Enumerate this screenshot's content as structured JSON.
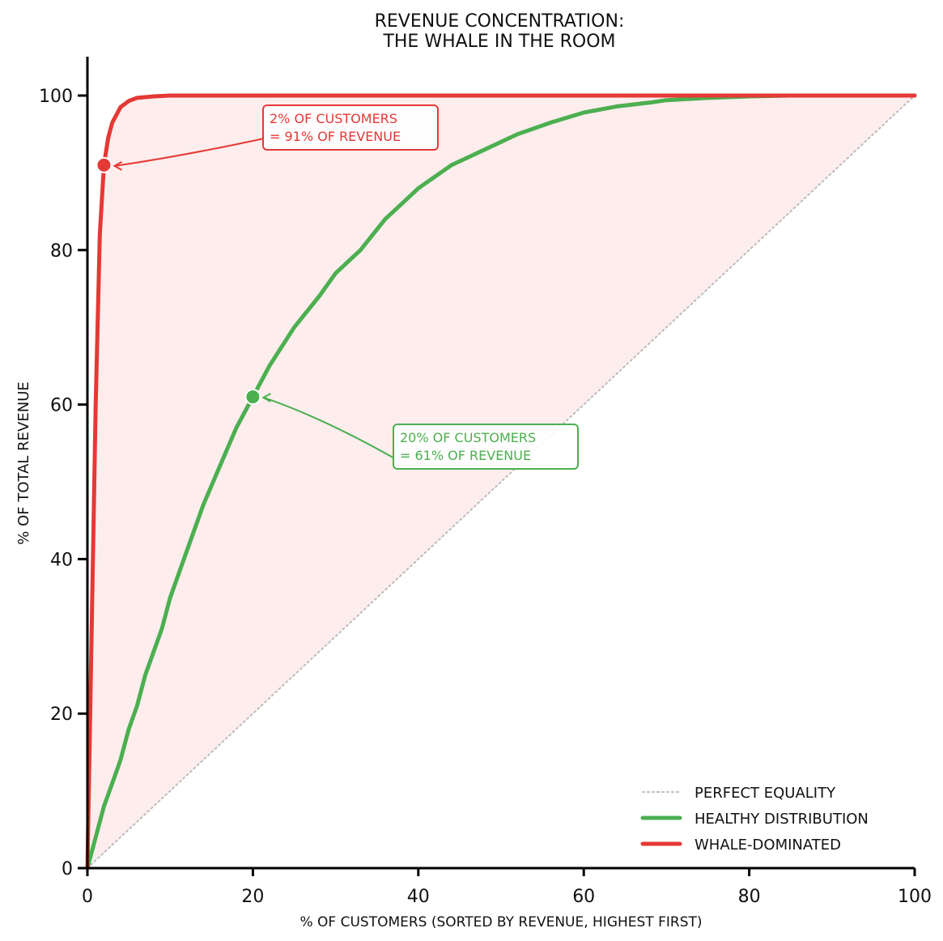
{
  "chart_data": {
    "type": "line",
    "title_lines": [
      "REVENUE CONCENTRATION:",
      "THE WHALE IN THE ROOM"
    ],
    "xlabel": "% OF CUSTOMERS (SORTED BY REVENUE, HIGHEST FIRST)",
    "ylabel": "% OF TOTAL REVENUE",
    "xlim": [
      0,
      100
    ],
    "ylim": [
      0,
      105
    ],
    "xticks": [
      0,
      20,
      40,
      60,
      80,
      100
    ],
    "yticks": [
      0,
      20,
      40,
      60,
      80,
      100
    ],
    "grid": false,
    "legend_position": "bottom-right",
    "series": [
      {
        "name": "PERFECT EQUALITY",
        "color": "#bbbbbb",
        "style": "dotted",
        "x": [
          0,
          100
        ],
        "y": [
          0,
          100
        ]
      },
      {
        "name": "HEALTHY DISTRIBUTION",
        "color": "#4caf50",
        "style": "solid",
        "x": [
          0,
          1,
          2,
          3,
          4,
          5,
          6,
          7,
          8,
          9,
          10,
          12,
          14,
          16,
          18,
          20,
          22,
          25,
          28,
          30,
          33,
          36,
          38,
          40,
          44,
          48,
          52,
          56,
          60,
          64,
          68,
          70,
          75,
          80,
          85,
          90,
          95,
          100
        ],
        "y": [
          0,
          4,
          8,
          11,
          14,
          18,
          21,
          25,
          28,
          31,
          35,
          41,
          47,
          52,
          57,
          61,
          65,
          70,
          74,
          77,
          80,
          84,
          86,
          88,
          91,
          93,
          95,
          96.5,
          97.8,
          98.6,
          99.1,
          99.4,
          99.7,
          99.9,
          100,
          100,
          100,
          100
        ]
      },
      {
        "name": "WHALE-DOMINATED",
        "color": "#e53935",
        "style": "solid",
        "x": [
          0,
          0.5,
          1,
          1.5,
          2,
          2.5,
          3,
          4,
          5,
          6,
          8,
          10,
          20,
          40,
          60,
          80,
          100
        ],
        "y": [
          0,
          30,
          60,
          82,
          91,
          94.5,
          96.5,
          98.5,
          99.3,
          99.7,
          99.9,
          100,
          100,
          100,
          100,
          100,
          100
        ]
      }
    ],
    "shaded_area": {
      "color": "#e53935",
      "between": [
        "WHALE-DOMINATED",
        "PERFECT EQUALITY"
      ]
    },
    "annotations": [
      {
        "point": [
          2,
          91
        ],
        "color": "#e53935",
        "lines": [
          "2% OF CUSTOMERS",
          "= 91% OF REVENUE"
        ]
      },
      {
        "point": [
          20,
          61
        ],
        "color": "#4caf50",
        "lines": [
          "20% OF CUSTOMERS",
          "= 61% OF REVENUE"
        ]
      }
    ]
  }
}
